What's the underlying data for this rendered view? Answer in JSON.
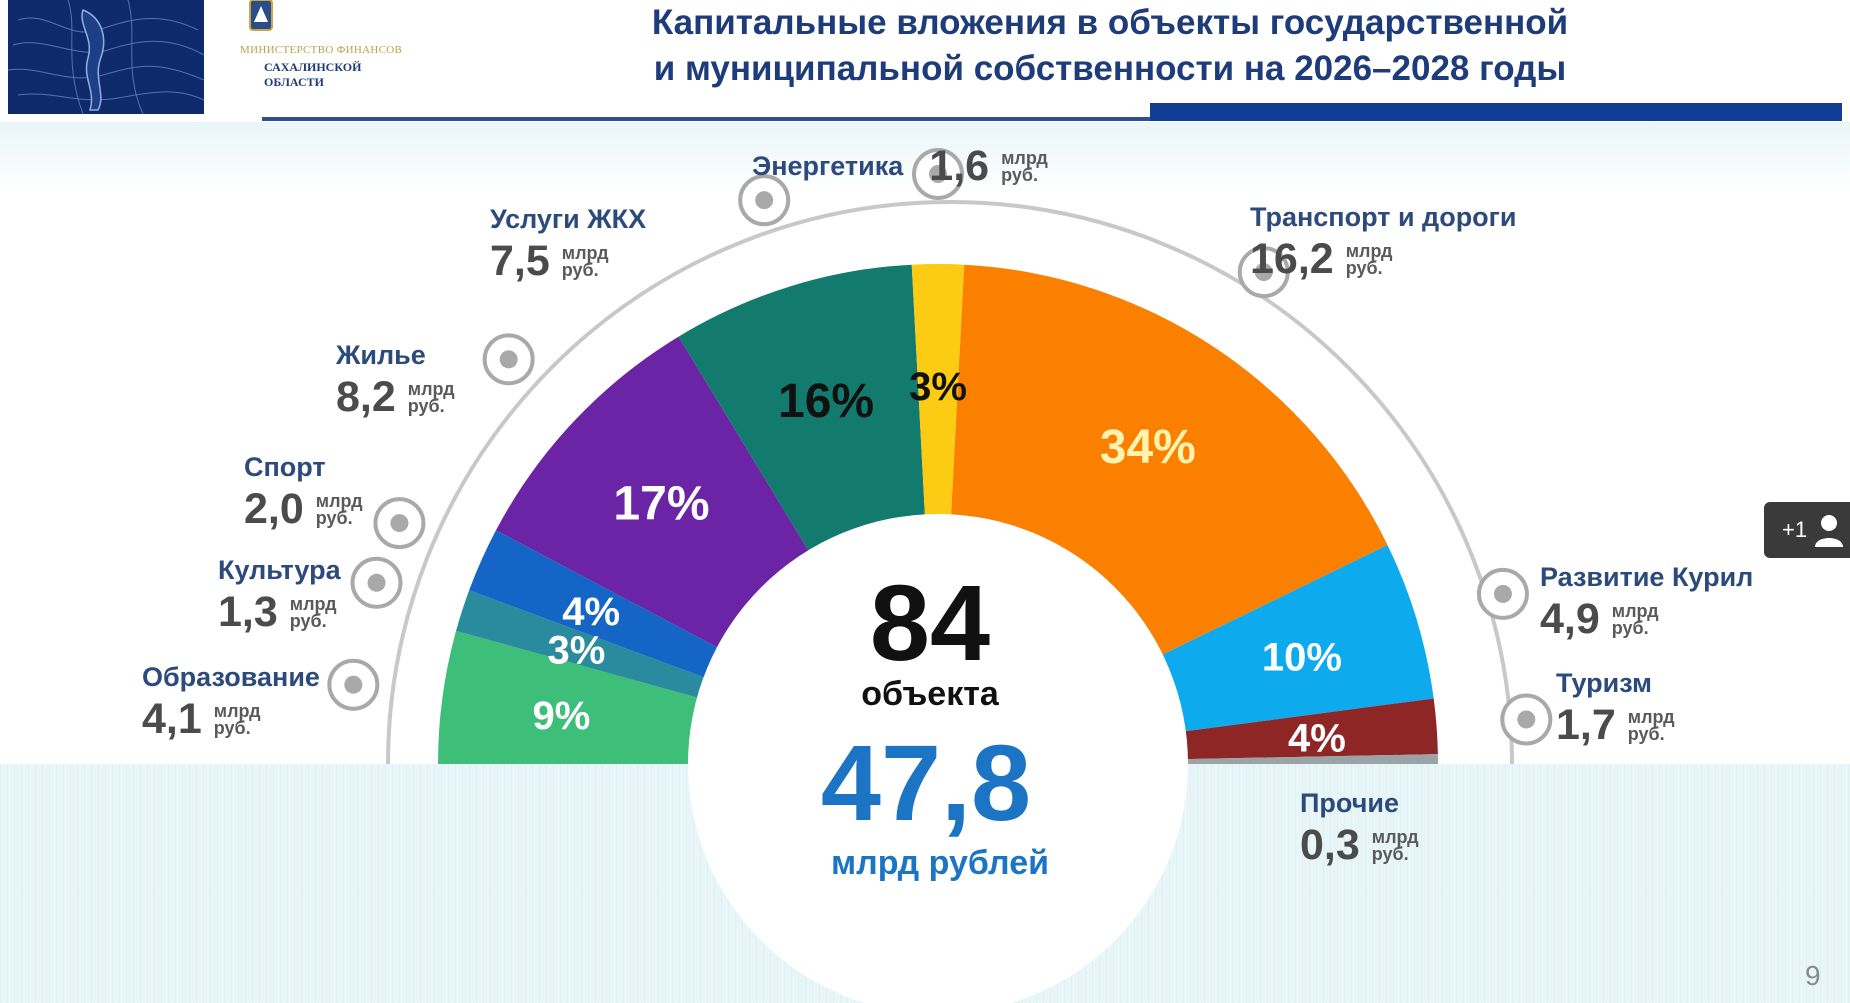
{
  "header": {
    "title_line1": "Капитальные вложения в объекты государственной",
    "title_line2": "и муниципальной собственности на 2026–2028 годы",
    "ministry_line1": "МИНИСТЕРСТВО ФИНАНСОВ",
    "ministry_line2": "САХАЛИНСКОЙ",
    "ministry_line3": "ОБЛАСТИ"
  },
  "center": {
    "objects_count": "84",
    "objects_label": "объекта",
    "total": "47,8",
    "total_label": "млрд рублей"
  },
  "unit_top": "млрд",
  "unit_bottom": "руб.",
  "colors": {
    "education": "#3dbe79",
    "culture": "#2a8a9e",
    "sport": "#1565c7",
    "housing": "#6a24a5",
    "utilities": "#137a6e",
    "energy": "#fccb13",
    "transport": "#fc8000",
    "kurils": "#0eaaee",
    "tourism": "#8f2626",
    "other": "#9aa4a6"
  },
  "chart_data": {
    "type": "pie",
    "shape": "semicircle-donut",
    "unit": "млрд руб.",
    "slices": [
      {
        "key": "education",
        "label": "Образование",
        "value": 4.1,
        "value_text": "4,1",
        "percent_text": "9%",
        "pct_color": "#ffffff"
      },
      {
        "key": "culture",
        "label": "Культура",
        "value": 1.3,
        "value_text": "1,3",
        "percent_text": "3%",
        "pct_color": "#ffffff"
      },
      {
        "key": "sport",
        "label": "Спорт",
        "value": 2.0,
        "value_text": "2,0",
        "percent_text": "4%",
        "pct_color": "#ffffff"
      },
      {
        "key": "housing",
        "label": "Жилье",
        "value": 8.2,
        "value_text": "8,2",
        "percent_text": "17%",
        "pct_color": "#ffffff"
      },
      {
        "key": "utilities",
        "label": "Услуги ЖКХ",
        "value": 7.5,
        "value_text": "7,5",
        "percent_text": "16%",
        "pct_color": "#111111"
      },
      {
        "key": "energy",
        "label": "Энергетика",
        "value": 1.6,
        "value_text": "1,6",
        "percent_text": "3%",
        "pct_color": "#111111"
      },
      {
        "key": "transport",
        "label": "Транспорт и дороги",
        "value": 16.2,
        "value_text": "16,2",
        "percent_text": "34%",
        "pct_color": "#fff3b0"
      },
      {
        "key": "kurils",
        "label": "Развитие Курил",
        "value": 4.9,
        "value_text": "4,9",
        "percent_text": "10%",
        "pct_color": "#ffffff"
      },
      {
        "key": "tourism",
        "label": "Туризм",
        "value": 1.7,
        "value_text": "1,7",
        "percent_text": "4%",
        "pct_color": "#ffffff"
      },
      {
        "key": "other",
        "label": "Прочие",
        "value": 0.3,
        "value_text": "0,3",
        "percent_text": "",
        "pct_color": "#ffffff"
      }
    ]
  },
  "participants_badge": "+1",
  "page_number": "9"
}
